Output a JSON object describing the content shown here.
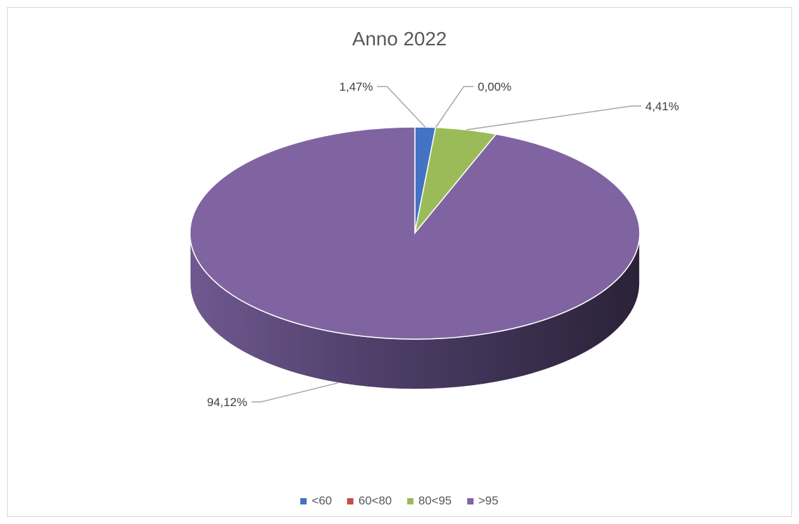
{
  "chart_data": {
    "type": "pie",
    "title": "Anno 2022",
    "categories": [
      "<60",
      "60<80",
      "80<95",
      ">95"
    ],
    "values": [
      1.47,
      0.0,
      4.41,
      94.12
    ],
    "labels": [
      "1,47%",
      "0,00%",
      "4,41%",
      "94,12%"
    ],
    "colors": [
      "#4472c4",
      "#c0504d",
      "#9bbb59",
      "#8064a2"
    ],
    "legend_position": "bottom",
    "style": "3d"
  }
}
